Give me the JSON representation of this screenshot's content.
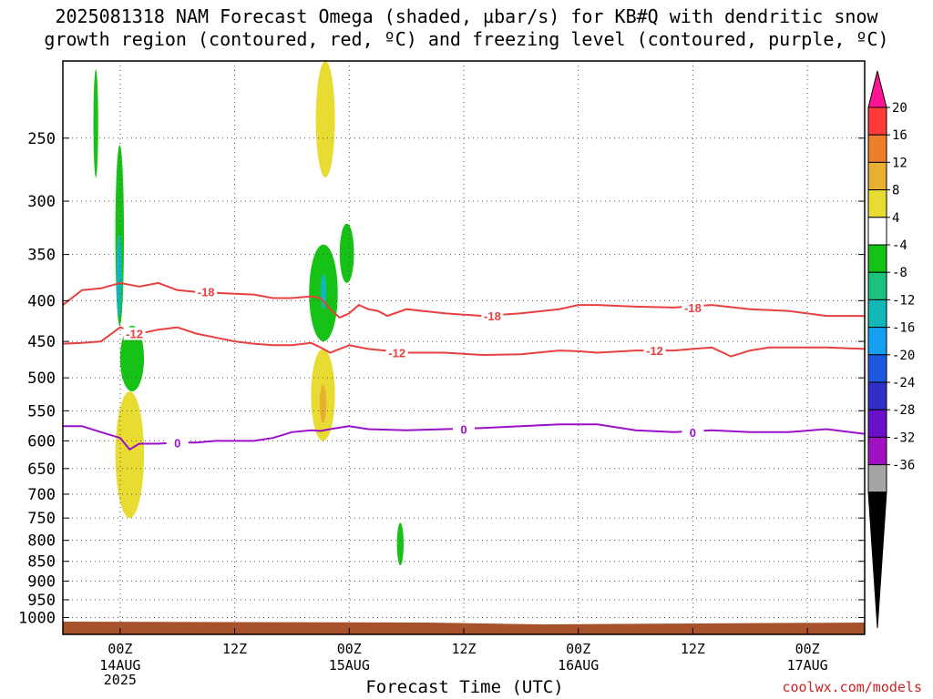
{
  "title": "2025081318 NAM Forecast Omega (shaded, µbar/s) for KB#Q with dendritic snow\ngrowth region (contoured, red, ºC) and freezing level (contoured, purple, ºC)",
  "watermark": "coolwx.com/models",
  "chart_data": {
    "type": "heatmap",
    "title": "2025081318 NAM Forecast Omega (shaded, µbar/s) for KB#Q with dendritic snow growth region (contoured, red, ºC) and freezing level (contoured, purple, ºC)",
    "xlabel": "Forecast Time (UTC)",
    "ylabel": "",
    "x_ticks": [
      {
        "label": "00Z",
        "sub": [
          "14AUG",
          "2025"
        ]
      },
      {
        "label": "12Z",
        "sub": []
      },
      {
        "label": "00Z",
        "sub": [
          "15AUG"
        ]
      },
      {
        "label": "12Z",
        "sub": []
      },
      {
        "label": "00Z",
        "sub": [
          "16AUG"
        ]
      },
      {
        "label": "12Z",
        "sub": []
      },
      {
        "label": "00Z",
        "sub": [
          "17AUG"
        ]
      }
    ],
    "x_tick_hours": [
      6,
      18,
      30,
      42,
      54,
      66,
      78
    ],
    "xlim_hours": [
      0,
      84
    ],
    "y_ticks": [
      250,
      300,
      350,
      400,
      450,
      500,
      550,
      600,
      650,
      700,
      750,
      800,
      850,
      900,
      950,
      1000
    ],
    "y_scale": "log",
    "ylim": [
      1050,
      200
    ],
    "grid": true,
    "colorbar": {
      "labels": [
        "20",
        "16",
        "12",
        "8",
        "4",
        "-4",
        "-8",
        "-12",
        "-16",
        "-20",
        "-24",
        "-28",
        "-32",
        "-36"
      ],
      "colors": [
        "#ff1493",
        "#ff3b3b",
        "#ee7f2a",
        "#e8b030",
        "#e8dc32",
        "#ffffff",
        "#15c215",
        "#1bc27c",
        "#12b8b8",
        "#159ff0",
        "#1f58e0",
        "#3030c8",
        "#6a10c8",
        "#9f10c0",
        "#a5a5a5",
        "#000000"
      ]
    },
    "omega_features": [
      {
        "value": -6,
        "t": [
          3.2,
          3.7
        ],
        "p": [
          205,
          280
        ]
      },
      {
        "value": -7,
        "t": [
          5.5,
          6.4
        ],
        "p": [
          255,
          430
        ]
      },
      {
        "value": -14,
        "t": [
          5.6,
          6.2
        ],
        "p": [
          330,
          420
        ]
      },
      {
        "value": -6,
        "t": [
          6.0,
          8.5
        ],
        "p": [
          430,
          520
        ]
      },
      {
        "value": 5,
        "t": [
          5.5,
          8.5
        ],
        "p": [
          520,
          750
        ]
      },
      {
        "value": 5,
        "t": [
          26.5,
          28.5
        ],
        "p": [
          200,
          280
        ]
      },
      {
        "value": -6,
        "t": [
          25.8,
          28.8
        ],
        "p": [
          340,
          450
        ]
      },
      {
        "value": -12,
        "t": [
          27.0,
          27.6
        ],
        "p": [
          370,
          410
        ]
      },
      {
        "value": -6,
        "t": [
          29.0,
          30.5
        ],
        "p": [
          320,
          380
        ]
      },
      {
        "value": 6,
        "t": [
          26.0,
          28.5
        ],
        "p": [
          460,
          600
        ]
      },
      {
        "value": 10,
        "t": [
          26.9,
          27.6
        ],
        "p": [
          510,
          570
        ]
      },
      {
        "value": -6,
        "t": [
          35.0,
          35.7
        ],
        "p": [
          760,
          860
        ]
      }
    ],
    "series": [
      {
        "name": "-18",
        "color": "#e84040",
        "x": [
          0,
          2,
          4,
          6,
          8,
          10,
          12,
          14,
          16,
          18,
          20,
          22,
          24,
          26,
          27,
          28,
          29,
          30,
          31,
          32,
          33,
          34,
          36,
          40,
          44,
          48,
          52,
          54,
          56,
          60,
          64,
          68,
          72,
          76,
          80,
          84
        ],
        "y": [
          405,
          388,
          386,
          380,
          384,
          380,
          388,
          390,
          391,
          392,
          393,
          397,
          397,
          395,
          397,
          410,
          420,
          415,
          405,
          410,
          412,
          418,
          410,
          415,
          418,
          415,
          410,
          405,
          405,
          407,
          408,
          405,
          410,
          412,
          418,
          418
        ]
      },
      {
        "name": "-12",
        "color": "#e84040",
        "x": [
          0,
          2,
          4,
          6,
          8,
          10,
          12,
          14,
          16,
          18,
          20,
          22,
          24,
          26,
          27,
          28,
          30,
          32,
          36,
          40,
          44,
          48,
          52,
          54,
          56,
          60,
          64,
          66,
          68,
          70,
          72,
          74,
          76,
          80,
          84
        ],
        "y": [
          453,
          452,
          450,
          432,
          440,
          435,
          432,
          440,
          445,
          450,
          453,
          455,
          455,
          452,
          458,
          465,
          455,
          460,
          465,
          465,
          468,
          467,
          462,
          463,
          465,
          462,
          462,
          460,
          458,
          470,
          462,
          458,
          458,
          458,
          460
        ]
      },
      {
        "name": "0",
        "color": "#9a10c8",
        "x": [
          0,
          2,
          4,
          6,
          7,
          8,
          9,
          10,
          12,
          14,
          16,
          18,
          20,
          22,
          24,
          26,
          27,
          28,
          30,
          32,
          36,
          40,
          44,
          48,
          52,
          56,
          60,
          64,
          68,
          72,
          76,
          80,
          84
        ],
        "y": [
          575,
          575,
          585,
          595,
          615,
          605,
          605,
          605,
          603,
          603,
          600,
          600,
          600,
          595,
          585,
          582,
          583,
          580,
          575,
          580,
          582,
          580,
          578,
          575,
          572,
          572,
          582,
          585,
          582,
          585,
          585,
          580,
          588
        ]
      }
    ]
  }
}
